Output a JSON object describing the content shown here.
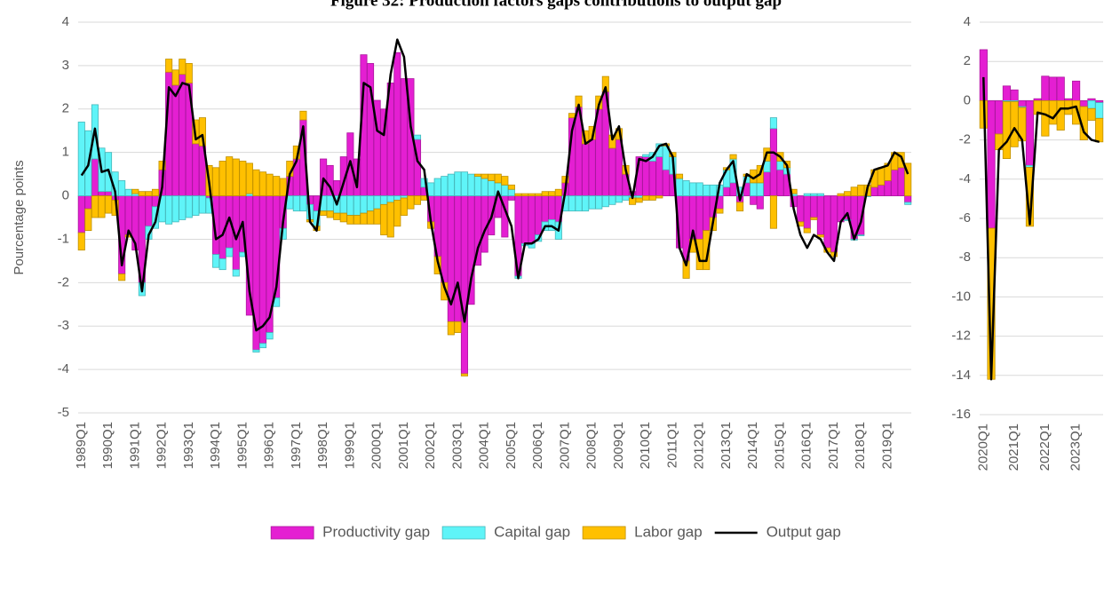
{
  "chart_data": [
    {
      "type": "bar",
      "stacked": true,
      "title": "Figure 32: Production factors gaps contributions to output gap",
      "y_label": "Pourcentage points",
      "categories": [
        "1989Q1",
        null,
        null,
        null,
        "1990Q1",
        null,
        null,
        null,
        "1991Q1",
        null,
        null,
        null,
        "1992Q1",
        null,
        null,
        null,
        "1993Q1",
        null,
        null,
        null,
        "1994Q1",
        null,
        null,
        null,
        "1995Q1",
        null,
        null,
        null,
        "1996Q1",
        null,
        null,
        null,
        "1997Q1",
        null,
        null,
        null,
        "1998Q1",
        null,
        null,
        null,
        "1999Q1",
        null,
        null,
        null,
        "2000Q1",
        null,
        null,
        null,
        "2001Q1",
        null,
        null,
        null,
        "2002Q1",
        null,
        null,
        null,
        "2003Q1",
        null,
        null,
        null,
        "2004Q1",
        null,
        null,
        null,
        "2005Q1",
        null,
        null,
        null,
        "2006Q1",
        null,
        null,
        null,
        "2007Q1",
        null,
        null,
        null,
        "2008Q1",
        null,
        null,
        null,
        "2009Q1",
        null,
        null,
        null,
        "2010Q1",
        null,
        null,
        null,
        "2011Q1",
        null,
        null,
        null,
        "2012Q1",
        null,
        null,
        null,
        "2013Q1",
        null,
        null,
        null,
        "2014Q1",
        null,
        null,
        null,
        "2015Q1",
        null,
        null,
        null,
        "2016Q1",
        null,
        null,
        null,
        "2017Q1",
        null,
        null,
        null,
        "2018Q1",
        null,
        null,
        null,
        "2019Q1",
        null,
        null,
        null
      ],
      "series": [
        {
          "name": "Productivity gap",
          "type": "bar",
          "color": "#e41fd2",
          "values": [
            -0.85,
            -0.3,
            0.85,
            0.1,
            0.1,
            -0.1,
            -1.8,
            -0.9,
            -1.25,
            -2.0,
            -0.7,
            -0.25,
            0.6,
            2.85,
            2.55,
            2.8,
            2.6,
            1.2,
            1.15,
            -0.05,
            -1.35,
            -1.45,
            -1.2,
            -1.7,
            -1.3,
            -2.75,
            -3.55,
            -3.4,
            -3.15,
            -2.35,
            -0.75,
            0.45,
            0.85,
            1.75,
            -0.2,
            -0.35,
            0.85,
            0.7,
            0.35,
            0.9,
            1.45,
            0.85,
            3.25,
            3.05,
            2.2,
            2.0,
            2.6,
            3.3,
            2.7,
            2.7,
            1.3,
            0.2,
            -0.6,
            -1.4,
            -2.0,
            -2.9,
            -2.9,
            -4.1,
            -2.5,
            -1.6,
            -1.3,
            -0.9,
            -0.5,
            -0.95,
            -0.1,
            -1.85,
            -1.1,
            -1.1,
            -0.9,
            -0.6,
            -0.55,
            -0.6,
            0.3,
            1.8,
            2.05,
            1.2,
            1.3,
            2.0,
            2.4,
            1.1,
            1.3,
            0.5,
            0.1,
            0.9,
            0.9,
            0.8,
            0.9,
            0.6,
            0.5,
            -1.2,
            -1.5,
            -1.0,
            -1.0,
            -0.8,
            -0.5,
            -0.3,
            0.2,
            0.3,
            -0.15,
            0.3,
            -0.2,
            -0.3,
            0.55,
            1.55,
            0.6,
            0.5,
            -0.25,
            -0.6,
            -0.75,
            -0.5,
            -0.9,
            -1.2,
            -1.3,
            -0.6,
            -0.55,
            -1.0,
            -0.9,
            0.0,
            0.2,
            0.25,
            0.35,
            0.6,
            0.65,
            -0.15
          ]
        },
        {
          "name": "Capital gap",
          "type": "bar",
          "color": "#5ff4f8",
          "values": [
            1.7,
            1.5,
            1.25,
            1.0,
            0.9,
            0.55,
            0.35,
            0.15,
            0.05,
            -0.3,
            -0.3,
            -0.5,
            -0.6,
            -0.65,
            -0.6,
            -0.55,
            -0.5,
            -0.45,
            -0.4,
            -0.35,
            -0.3,
            -0.25,
            -0.2,
            -0.15,
            -0.1,
            0.05,
            -0.05,
            -0.1,
            -0.15,
            -0.2,
            -0.25,
            -0.3,
            -0.35,
            -0.35,
            -0.35,
            -0.35,
            -0.35,
            -0.35,
            -0.4,
            -0.4,
            -0.45,
            -0.45,
            -0.4,
            -0.35,
            -0.3,
            -0.2,
            -0.15,
            -0.1,
            -0.05,
            0.0,
            0.1,
            0.2,
            0.3,
            0.4,
            0.45,
            0.5,
            0.55,
            0.55,
            0.5,
            0.45,
            0.4,
            0.35,
            0.3,
            0.25,
            0.15,
            -0.05,
            -0.05,
            -0.1,
            -0.15,
            -0.2,
            -0.25,
            -0.4,
            -0.35,
            -0.35,
            -0.35,
            -0.35,
            -0.3,
            -0.3,
            -0.25,
            -0.2,
            -0.15,
            -0.1,
            -0.05,
            -0.05,
            0.05,
            0.2,
            0.3,
            0.55,
            0.4,
            0.4,
            0.35,
            0.3,
            0.3,
            0.25,
            0.25,
            0.25,
            0.4,
            0.55,
            0.2,
            0.15,
            0.3,
            0.3,
            0.25,
            0.25,
            0.2,
            0.15,
            0.05,
            0.0,
            0.05,
            0.05,
            0.05,
            0.0,
            0.0,
            0.0,
            -0.02,
            -0.02,
            -0.02,
            -0.02,
            0.0,
            0.0,
            0.0,
            0.0,
            0.0,
            -0.05
          ]
        },
        {
          "name": "Labor gap",
          "type": "bar",
          "color": "#ffc000",
          "values": [
            -0.4,
            -0.5,
            -0.5,
            -0.5,
            -0.4,
            -0.35,
            -0.15,
            -0.05,
            0.1,
            0.1,
            0.1,
            0.15,
            0.2,
            0.3,
            0.35,
            0.35,
            0.45,
            0.55,
            0.65,
            0.7,
            0.65,
            0.8,
            0.9,
            0.85,
            0.8,
            0.7,
            0.6,
            0.55,
            0.5,
            0.45,
            0.4,
            0.35,
            0.3,
            0.2,
            -0.05,
            -0.1,
            -0.1,
            -0.15,
            -0.15,
            -0.2,
            -0.2,
            -0.2,
            -0.25,
            -0.3,
            -0.35,
            -0.7,
            -0.8,
            -0.6,
            -0.4,
            -0.3,
            -0.2,
            -0.1,
            -0.15,
            -0.4,
            -0.4,
            -0.3,
            -0.25,
            -0.05,
            0.0,
            0.05,
            0.1,
            0.15,
            0.2,
            0.2,
            0.1,
            0.05,
            0.05,
            0.05,
            0.05,
            0.1,
            0.1,
            0.15,
            0.15,
            0.1,
            0.25,
            0.3,
            0.3,
            0.3,
            0.35,
            0.3,
            0.25,
            0.2,
            -0.15,
            -0.1,
            -0.1,
            -0.1,
            -0.05,
            0.05,
            0.1,
            0.1,
            -0.4,
            -0.3,
            -0.7,
            -0.9,
            -0.3,
            -0.1,
            0.05,
            0.1,
            -0.2,
            0.05,
            0.3,
            0.4,
            0.3,
            -0.75,
            0.2,
            0.15,
            0.1,
            -0.1,
            -0.1,
            -0.05,
            -0.05,
            -0.1,
            -0.1,
            0.05,
            0.1,
            0.2,
            0.25,
            0.25,
            0.4,
            0.4,
            0.4,
            0.4,
            0.35,
            0.75
          ]
        },
        {
          "name": "Output gap",
          "type": "line",
          "color": "#000000",
          "values": [
            0.47,
            0.7,
            1.55,
            0.55,
            0.6,
            0.1,
            -1.6,
            -0.8,
            -1.1,
            -2.2,
            -0.9,
            -0.6,
            0.2,
            2.5,
            2.3,
            2.6,
            2.55,
            1.3,
            1.4,
            0.3,
            -1.0,
            -0.9,
            -0.5,
            -1.0,
            -0.6,
            -2.2,
            -3.1,
            -3.0,
            -2.8,
            -2.1,
            -0.6,
            0.5,
            0.8,
            1.6,
            -0.6,
            -0.8,
            0.4,
            0.2,
            -0.2,
            0.3,
            0.8,
            0.2,
            2.6,
            2.5,
            1.5,
            1.4,
            2.8,
            3.6,
            3.2,
            1.6,
            0.8,
            0.6,
            -0.6,
            -1.5,
            -2.1,
            -2.5,
            -2.0,
            -2.9,
            -1.9,
            -1.2,
            -0.8,
            -0.5,
            0.1,
            -0.3,
            -0.7,
            -1.9,
            -1.1,
            -1.1,
            -1.0,
            -0.7,
            -0.7,
            -0.8,
            0.1,
            1.5,
            2.1,
            1.2,
            1.3,
            2.1,
            2.5,
            1.3,
            1.6,
            0.6,
            -0.05,
            0.85,
            0.8,
            0.9,
            1.15,
            1.2,
            0.9,
            -1.2,
            -1.6,
            -0.8,
            -1.5,
            -1.5,
            -0.6,
            0.3,
            0.6,
            0.8,
            -0.1,
            0.5,
            0.4,
            0.5,
            1.0,
            1.0,
            0.9,
            0.7,
            -0.3,
            -0.9,
            -1.2,
            -0.9,
            -1.0,
            -1.3,
            -1.5,
            -0.6,
            -0.4,
            -1.0,
            -0.6,
            0.2,
            0.6,
            0.65,
            0.7,
            1.0,
            0.9,
            0.5
          ]
        }
      ],
      "ylim": [
        -5,
        4
      ],
      "yticks": [
        -5,
        -4,
        -3,
        -2,
        -1,
        0,
        1,
        2,
        3,
        4
      ],
      "grid": true,
      "legend": "bottom"
    },
    {
      "type": "bar",
      "stacked": true,
      "categories": [
        "2020Q1",
        null,
        null,
        null,
        "2021Q1",
        null,
        null,
        null,
        "2022Q1",
        null,
        null,
        null,
        "2023Q1",
        null,
        null,
        null
      ],
      "series": [
        {
          "type": "bar",
          "color": "#e41fd2",
          "values": [
            2.6,
            -6.5,
            -1.7,
            0.75,
            0.55,
            -0.3,
            -3.3,
            0.1,
            1.25,
            1.2,
            1.2,
            0.1,
            1.0,
            -0.3,
            0.1,
            -0.1
          ]
        },
        {
          "type": "bar",
          "color": "#5ff4f8",
          "values": [
            0,
            0,
            0,
            -0.05,
            -0.05,
            -0.05,
            -0.1,
            0,
            0,
            0,
            0,
            0,
            0,
            0,
            -0.4,
            -0.8
          ]
        },
        {
          "type": "bar",
          "color": "#ffc000",
          "values": [
            -1.4,
            -7.7,
            -0.8,
            -2.9,
            -2.3,
            -1.7,
            -3.0,
            -0.7,
            -1.8,
            -1.2,
            -1.5,
            -0.7,
            -1.2,
            -1.7,
            -0.6,
            -1.2
          ]
        },
        {
          "type": "line",
          "color": "#000000",
          "values": [
            1.2,
            -14.2,
            -2.5,
            -2.1,
            -1.4,
            -2.0,
            -6.3,
            -0.6,
            -0.7,
            -0.9,
            -0.4,
            -0.4,
            -0.3,
            -1.6,
            -2.0,
            -2.1
          ]
        }
      ],
      "ylim": [
        -16,
        4
      ],
      "yticks": [
        -16,
        -14,
        -12,
        -10,
        -8,
        -6,
        -4,
        -2,
        0,
        2,
        4
      ],
      "grid": true
    }
  ]
}
